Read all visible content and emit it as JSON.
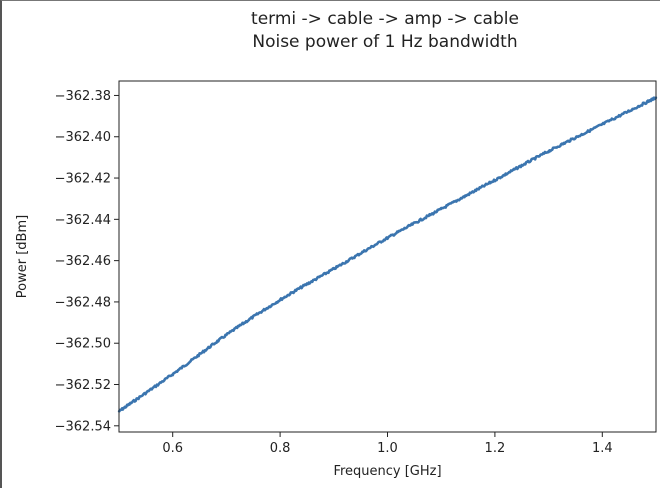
{
  "chart_data": {
    "type": "line",
    "title_line1": "termi -> cable -> amp -> cable",
    "title_line2": "Noise power of 1 Hz bandwidth",
    "xlabel": "Frequency [GHz]",
    "ylabel": "Power [dBm]",
    "xlim": [
      0.5,
      1.5
    ],
    "ylim": [
      -362.543,
      -362.373
    ],
    "xticks": [
      0.6,
      0.8,
      1.0,
      1.2,
      1.4
    ],
    "xtick_labels": [
      "0.6",
      "0.8",
      "1.0",
      "1.2",
      "1.4"
    ],
    "yticks": [
      -362.38,
      -362.4,
      -362.42,
      -362.44,
      -362.46,
      -362.48,
      -362.5,
      -362.52,
      -362.54
    ],
    "ytick_labels": [
      "−362.38",
      "−362.40",
      "−362.42",
      "−362.44",
      "−362.46",
      "−362.48",
      "−362.50",
      "−362.52",
      "−362.54"
    ],
    "grid": false,
    "series": [
      {
        "color": "#3b75af",
        "x": [
          0.5,
          0.6,
          0.7,
          0.8,
          0.9,
          1.0,
          1.1,
          1.2,
          1.3,
          1.4,
          1.5
        ],
        "y": [
          -362.533,
          -362.515,
          -362.496,
          -362.479,
          -362.464,
          -362.449,
          -362.435,
          -362.421,
          -362.407,
          -362.394,
          -362.381
        ]
      }
    ]
  }
}
